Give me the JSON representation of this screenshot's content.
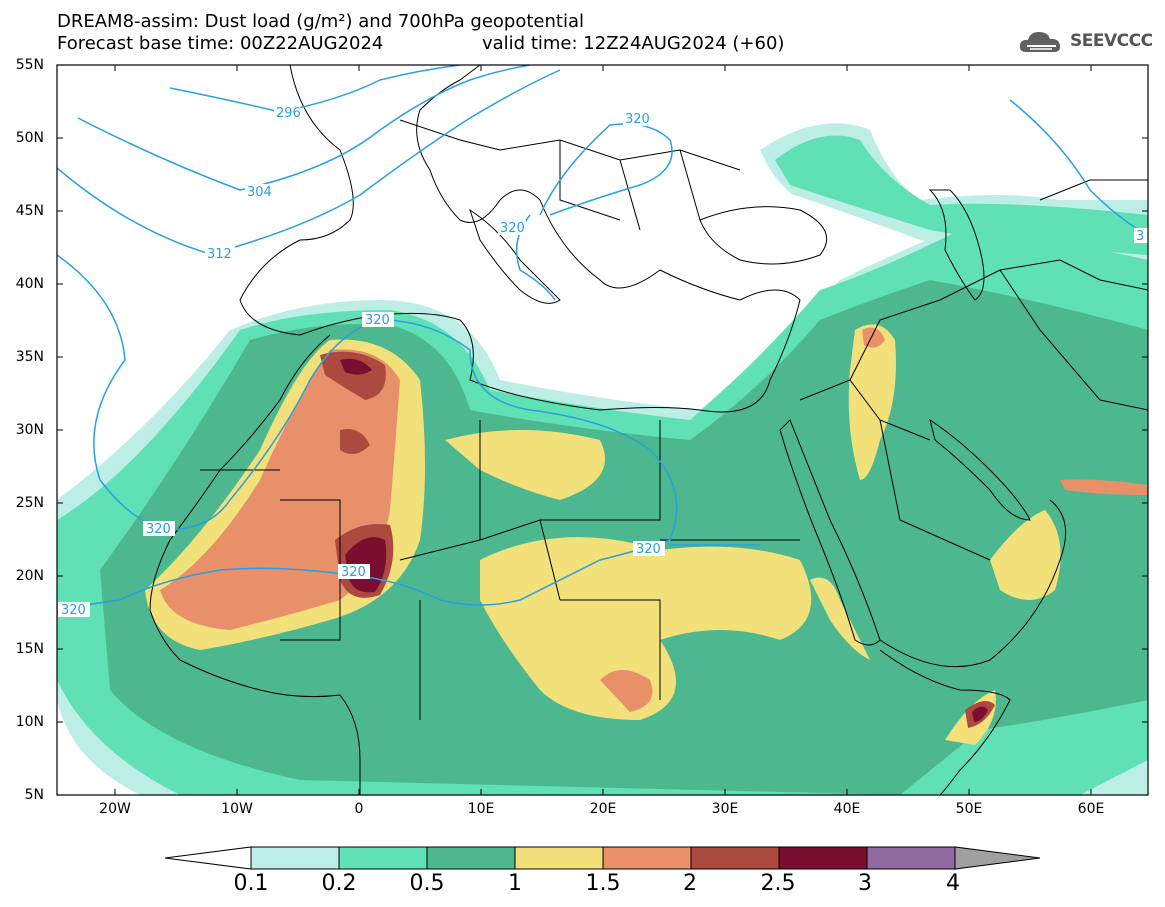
{
  "title_line1": "DREAM8-assim: Dust load (g/m²) and 700hPa geopotential",
  "title_line2_base": "Forecast base time: 00Z22AUG2024",
  "title_line2_valid": "valid time: 12Z24AUG2024 (+60)",
  "logo_text": "SEEVCCC",
  "logo_icon": "cloud-icon",
  "lat_labels": [
    "55N",
    "50N",
    "45N",
    "40N",
    "35N",
    "30N",
    "25N",
    "20N",
    "15N",
    "10N",
    "5N"
  ],
  "lon_labels": [
    "20W",
    "10W",
    "0",
    "10E",
    "20E",
    "30E",
    "40E",
    "50E",
    "60E"
  ],
  "contour_labels": [
    "296",
    "304",
    "312",
    "320",
    "320",
    "320",
    "320",
    "320",
    "320",
    "320",
    "3"
  ],
  "colorbar": {
    "colors": [
      "#ffffff",
      "#bdeee6",
      "#5fe0b5",
      "#4db890",
      "#f2e07a",
      "#e8906a",
      "#ad4a40",
      "#7a0e30",
      "#8e6aa0",
      "#a0a0a0"
    ],
    "labels": [
      "0.1",
      "0.2",
      "0.5",
      "1",
      "1.5",
      "2",
      "2.5",
      "3",
      "4"
    ]
  },
  "colors": {
    "land_outline": "#000000",
    "geopotential": "#2aa0e0",
    "ocean": "#ffffff"
  }
}
